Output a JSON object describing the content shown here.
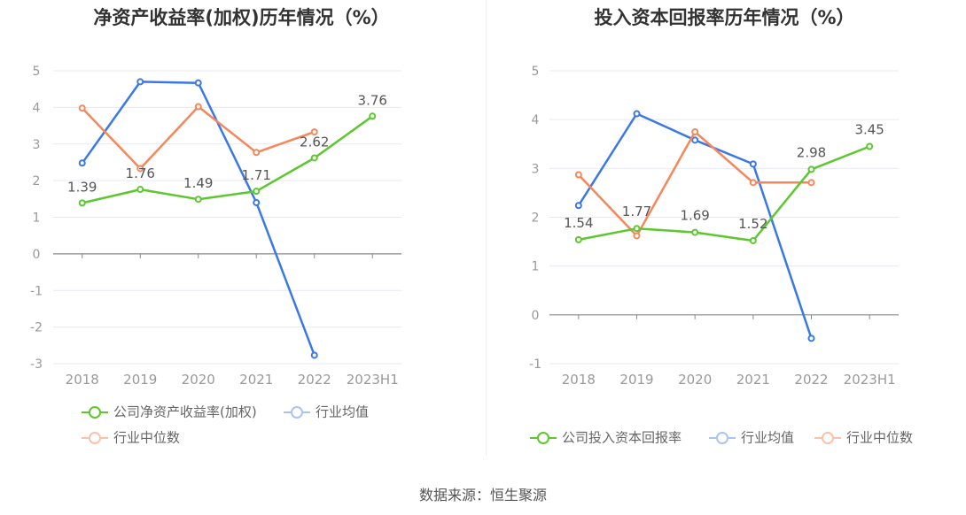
{
  "chart_data": [
    {
      "type": "line",
      "title": "净资产收益率(加权)历年情况（%）",
      "categories": [
        "2018",
        "2019",
        "2020",
        "2021",
        "2022",
        "2023H1"
      ],
      "ylim": [
        -3,
        5
      ],
      "yticks": [
        "5",
        "4",
        "3",
        "2",
        "1",
        "0",
        "-1",
        "-2",
        "-3"
      ],
      "grid": true,
      "legend_position": "bottom",
      "series": [
        {
          "name": "公司净资产收益率(加权)",
          "color": "#5cc72f",
          "values": [
            1.39,
            1.76,
            1.49,
            1.71,
            2.62,
            3.76
          ],
          "labels": [
            "1.39",
            "1.76",
            "1.49",
            "1.71",
            "2.62",
            "3.76"
          ]
        },
        {
          "name": "行业均值",
          "color": "#3b78e7",
          "values": [
            2.48,
            4.7,
            4.67,
            1.4,
            -2.77,
            null
          ]
        },
        {
          "name": "行业中位数",
          "color": "#f5875b",
          "values": [
            3.98,
            2.33,
            4.02,
            2.77,
            3.33,
            null
          ]
        }
      ]
    },
    {
      "type": "line",
      "title": "投入资本回报率历年情况（%）",
      "categories": [
        "2018",
        "2019",
        "2020",
        "2021",
        "2022",
        "2023H1"
      ],
      "ylim": [
        -1,
        5
      ],
      "yticks": [
        "5",
        "4",
        "3",
        "2",
        "1",
        "0",
        "-1"
      ],
      "grid": true,
      "legend_position": "bottom",
      "series": [
        {
          "name": "公司投入资本回报率",
          "color": "#5cc72f",
          "values": [
            1.54,
            1.77,
            1.69,
            1.52,
            2.98,
            3.45
          ],
          "labels": [
            "1.54",
            "1.77",
            "1.69",
            "1.52",
            "2.98",
            "3.45"
          ]
        },
        {
          "name": "行业均值",
          "color": "#3b78e7",
          "values": [
            2.24,
            4.12,
            3.58,
            3.09,
            -0.48,
            null
          ]
        },
        {
          "name": "行业中位数",
          "color": "#f5875b",
          "values": [
            2.87,
            1.62,
            3.75,
            2.71,
            2.71,
            null
          ]
        }
      ]
    }
  ],
  "source_text": "数据来源：恒生聚源"
}
